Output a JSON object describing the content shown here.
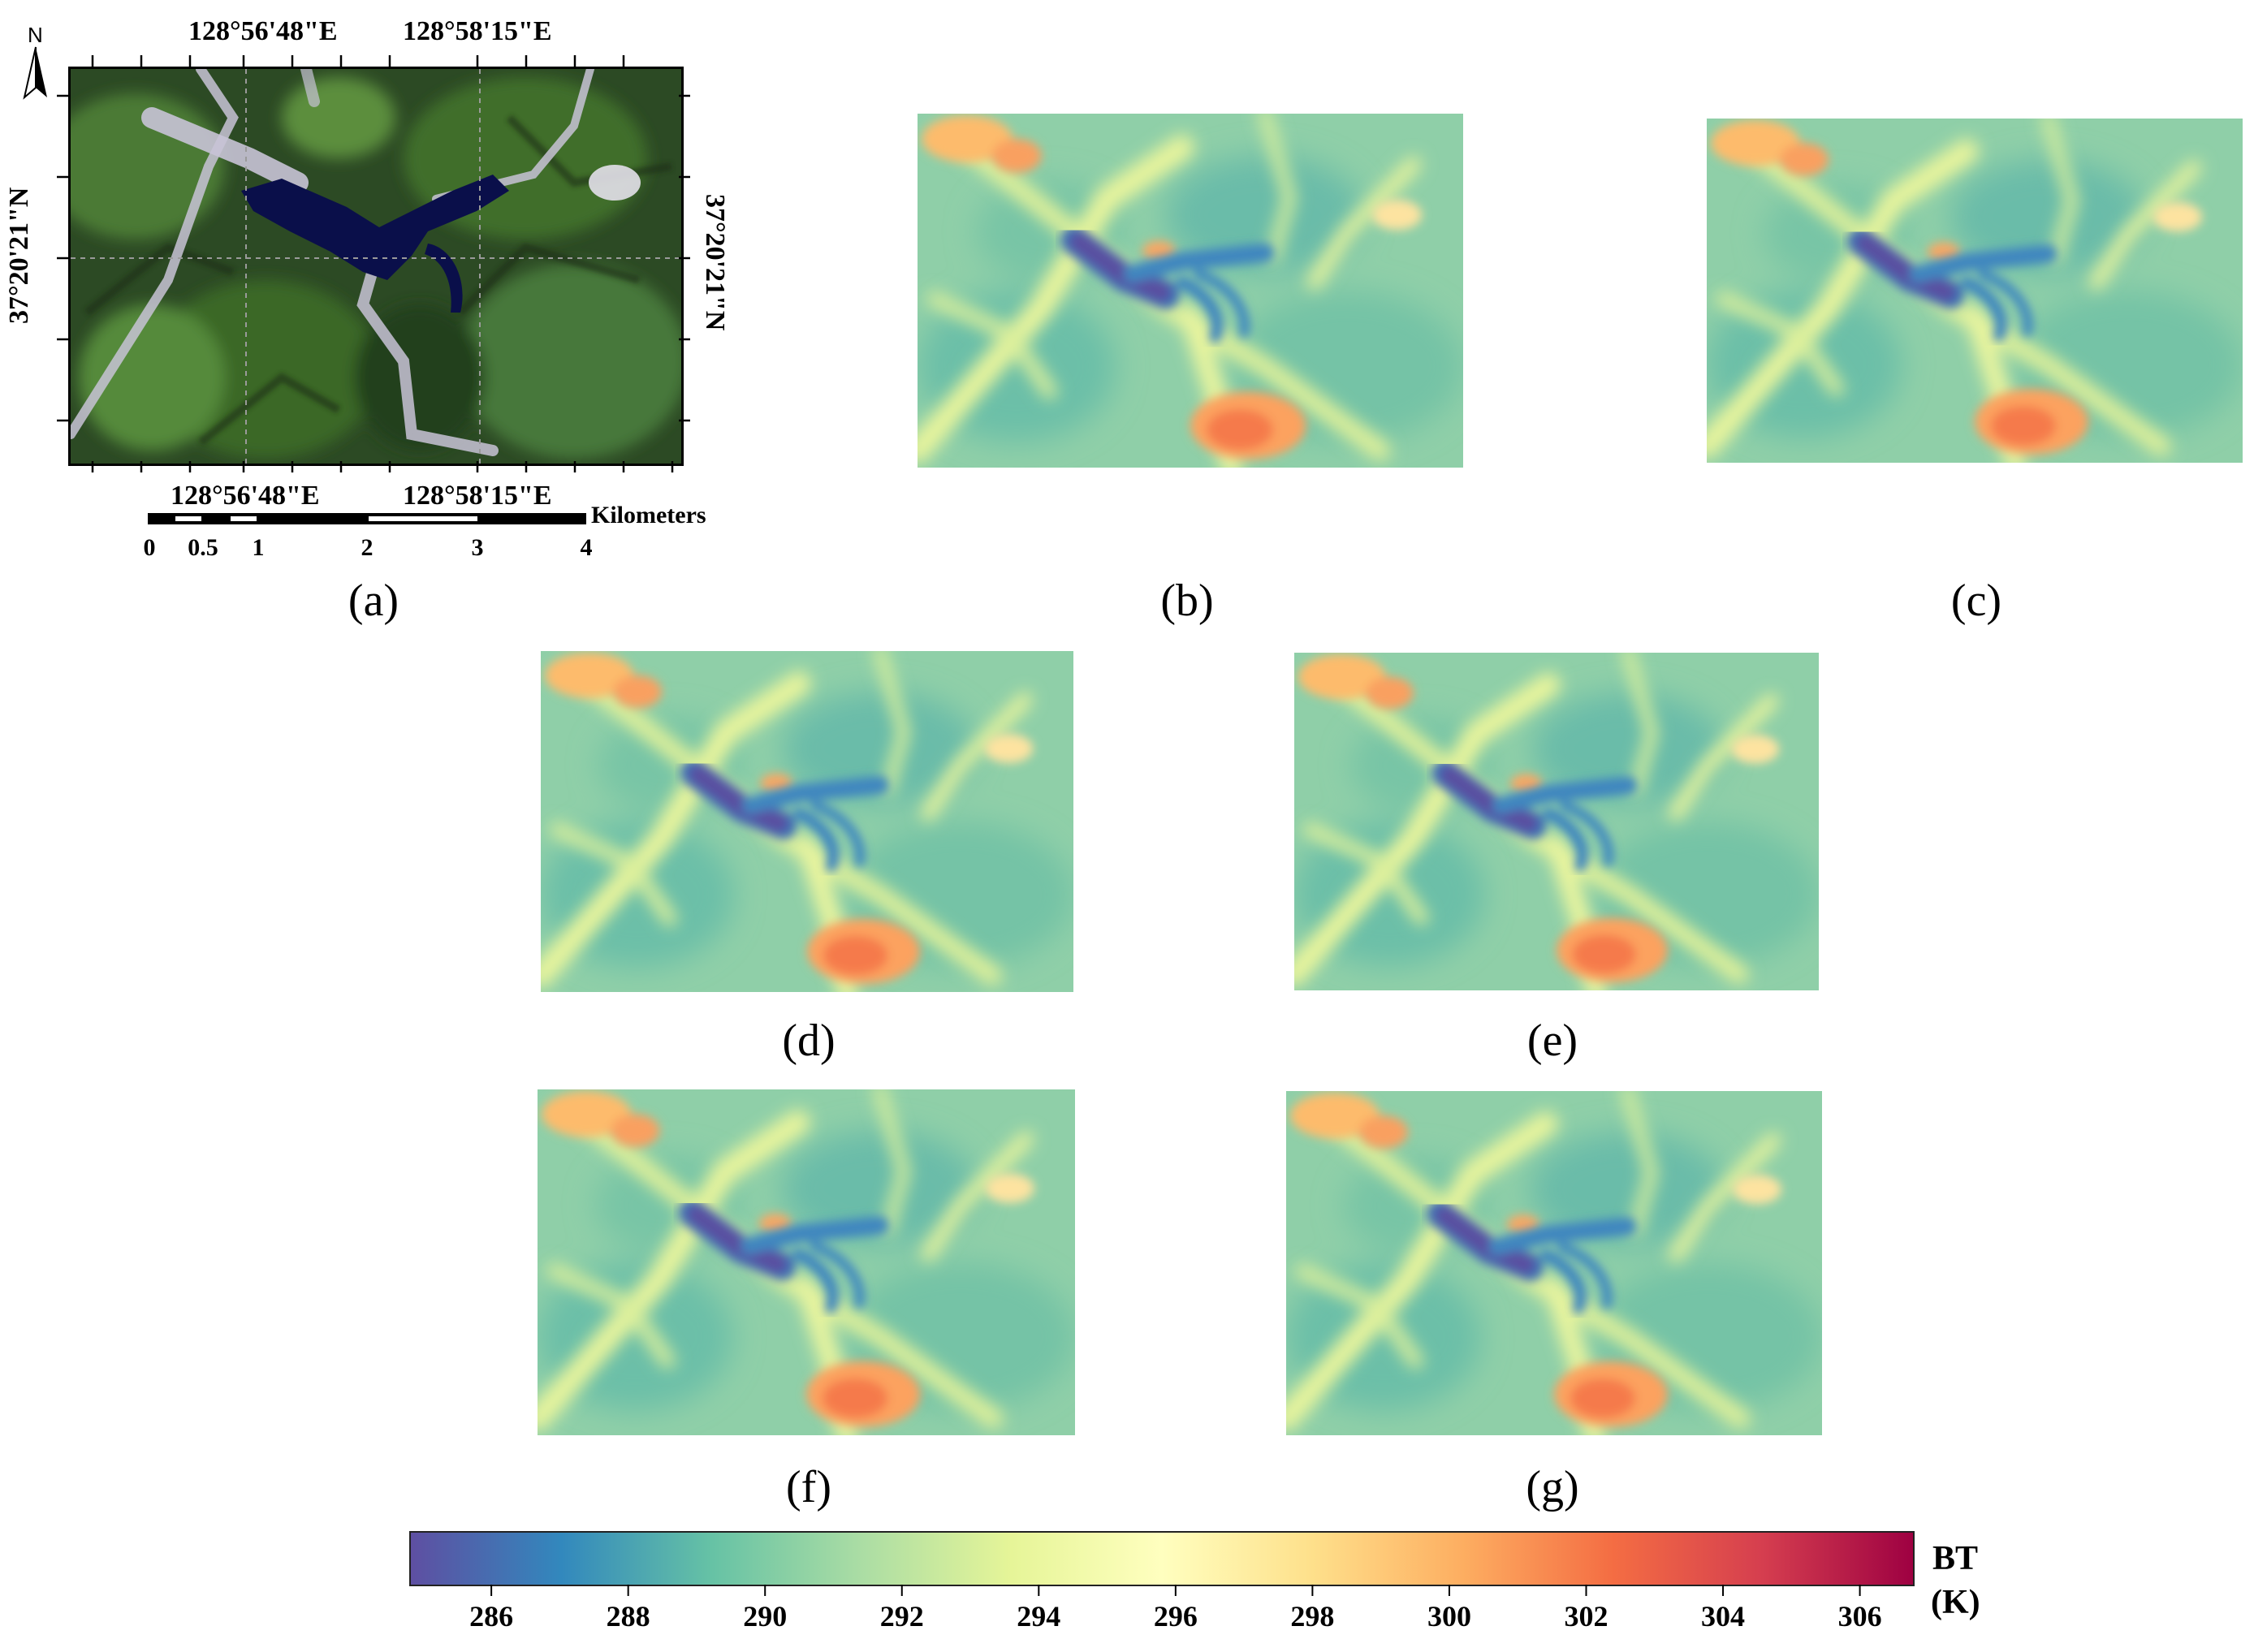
{
  "panel_a": {
    "label": "(a)",
    "north": "N",
    "top_coords": [
      "128°56'48\"E",
      "128°58'15\"E"
    ],
    "bottom_coords": [
      "128°56'48\"E",
      "128°58'15\"E"
    ],
    "left_coord": "37°20'21\"N",
    "right_coord": "37°20'21\"N",
    "scalebar": {
      "unit": "Kilometers",
      "ticks": [
        "0",
        "0.5",
        "1",
        "2",
        "3",
        "4"
      ]
    }
  },
  "panels": [
    {
      "id": "b",
      "label": "(b)"
    },
    {
      "id": "c",
      "label": "(c)"
    },
    {
      "id": "d",
      "label": "(d)"
    },
    {
      "id": "e",
      "label": "(e)"
    },
    {
      "id": "f",
      "label": "(f)"
    },
    {
      "id": "g",
      "label": "(g)"
    }
  ],
  "colorbar": {
    "title_line1": "BT",
    "title_line2": "(K)",
    "ticks": [
      "286",
      "288",
      "290",
      "292",
      "294",
      "296",
      "298",
      "300",
      "302",
      "304",
      "306"
    ],
    "range": [
      284.8,
      306.8
    ],
    "colors": [
      "#5e4fa2",
      "#3288bd",
      "#66c2a5",
      "#abdda4",
      "#e6f598",
      "#ffffbf",
      "#fee08b",
      "#fdae61",
      "#f46d43",
      "#d53e4f",
      "#9e0142"
    ]
  }
}
